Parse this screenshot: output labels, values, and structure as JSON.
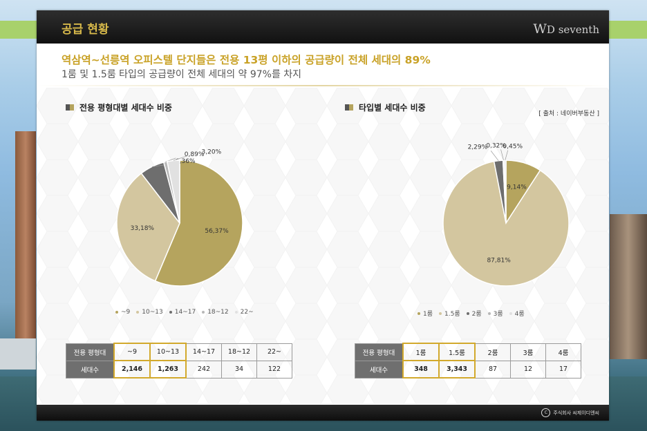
{
  "header": {
    "title": "공급 현황",
    "logo_main": "W",
    "logo_sub": "D seventh"
  },
  "headline": "역삼역~선릉역 오피스텔 단지들은 전용 13평 이하의 공급량이 전체 세대의 89%",
  "subline": "1룸 및 1.5룸 타입의 공급량이 전체 세대의 약 97%를 차지",
  "source": "[ 출처 : 네이버부동산 ]",
  "footer": {
    "copyright_symbol": "C",
    "text": "주식회사 씨제이디엔씨"
  },
  "colors": {
    "gold": "#b5a45e",
    "beige": "#d3c69f",
    "gray": "#6e6e6e",
    "light_gray": "#b8b8b8",
    "pale": "#e1e1e1",
    "accent": "#c9a227"
  },
  "chart_data": [
    {
      "type": "pie",
      "title": "전용 평형대별 세대수 비중",
      "series": [
        {
          "values": [
            2146,
            1263,
            242,
            34,
            122
          ]
        }
      ],
      "categories": [
        "~9",
        "10~13",
        "14~17",
        "18~12",
        "22~"
      ],
      "percent_labels": [
        "56,37%",
        "33,18%",
        "6,36%",
        "0,89%",
        "3,20%"
      ],
      "colors": [
        "#b5a45e",
        "#d3c69f",
        "#6e6e6e",
        "#b8b8b8",
        "#e1e1e1"
      ],
      "legend_position": "bottom",
      "table": {
        "header_label": "전용 평형대",
        "row_label": "세대수",
        "columns": [
          "~9",
          "10~13",
          "14~17",
          "18~12",
          "22~"
        ],
        "values": [
          "2,146",
          "1,263",
          "242",
          "34",
          "122"
        ],
        "highlighted": [
          0,
          1
        ]
      }
    },
    {
      "type": "pie",
      "title": "타입별 세대수 비중",
      "series": [
        {
          "values": [
            348,
            3343,
            87,
            12,
            17
          ]
        }
      ],
      "categories": [
        "1룸",
        "1.5룸",
        "2룸",
        "3룸",
        "4룸"
      ],
      "percent_labels": [
        "9,14%",
        "87,81%",
        "2,29%",
        "0,32%",
        "0,45%"
      ],
      "colors": [
        "#b5a45e",
        "#d3c69f",
        "#6e6e6e",
        "#b8b8b8",
        "#e1e1e1"
      ],
      "legend_position": "bottom",
      "table": {
        "header_label": "전용 평형대",
        "row_label": "세대수",
        "columns": [
          "1룸",
          "1.5룸",
          "2룸",
          "3룸",
          "4룸"
        ],
        "values": [
          "348",
          "3,343",
          "87",
          "12",
          "17"
        ],
        "highlighted": [
          0,
          1
        ]
      }
    }
  ]
}
